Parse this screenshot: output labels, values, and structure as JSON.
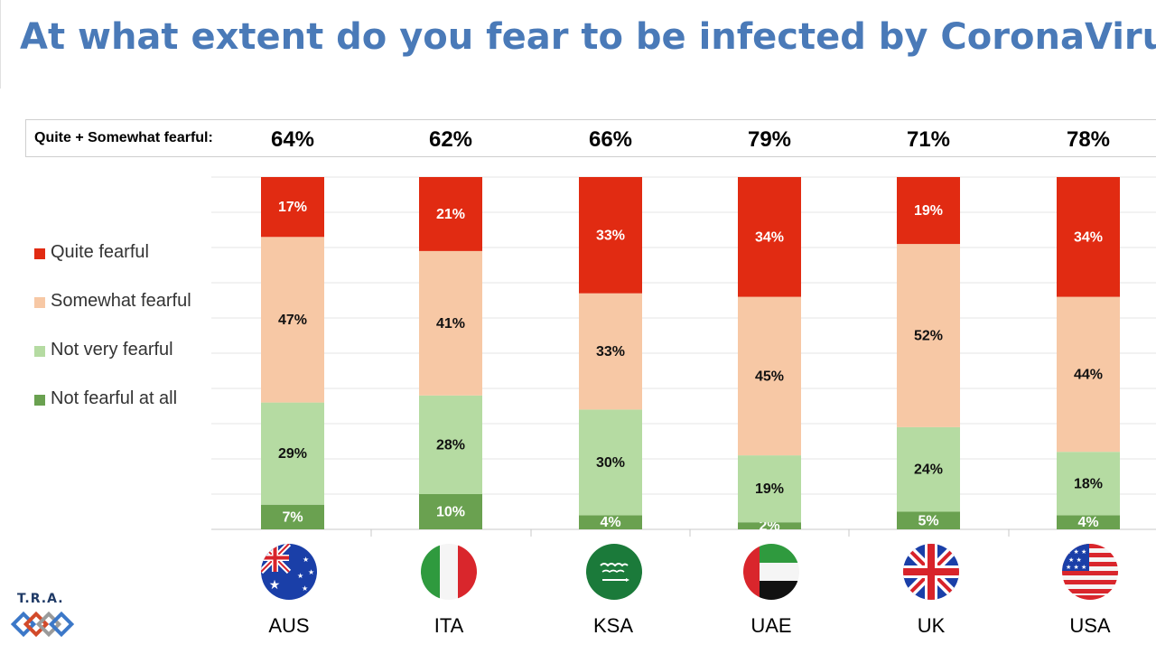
{
  "title": "At what extent do you fear to be infected by CoronaVirus?",
  "summary": {
    "label": "Quite + Somewhat fearful:",
    "values": [
      "64%",
      "62%",
      "66%",
      "79%",
      "71%",
      "78%"
    ]
  },
  "legend": [
    {
      "label": "Quite fearful",
      "color": "#e12b12"
    },
    {
      "label": "Somewhat fearful",
      "color": "#f7c8a5"
    },
    {
      "label": "Not very fearful",
      "color": "#b5dba2"
    },
    {
      "label": "Not fearful at all",
      "color": "#6aa150"
    }
  ],
  "logo": {
    "text": "T.R.A."
  },
  "chart_data": {
    "type": "bar",
    "stacked": true,
    "categories": [
      "AUS",
      "ITA",
      "KSA",
      "UAE",
      "UK",
      "USA"
    ],
    "flags": [
      "australia-flag-icon",
      "italy-flag-icon",
      "saudi-arabia-flag-icon",
      "uae-flag-icon",
      "uk-flag-icon",
      "usa-flag-icon"
    ],
    "series": [
      {
        "name": "Not fearful at all",
        "color": "#6aa150",
        "values": [
          7,
          10,
          4,
          2,
          5,
          4
        ],
        "labels": [
          "7%",
          "10%",
          "4%",
          "2%",
          "5%",
          "4%"
        ]
      },
      {
        "name": "Not very fearful",
        "color": "#b5dba2",
        "values": [
          29,
          28,
          30,
          19,
          24,
          18
        ],
        "labels": [
          "29%",
          "28%",
          "30%",
          "19%",
          "24%",
          "18%"
        ]
      },
      {
        "name": "Somewhat fearful",
        "color": "#f7c8a5",
        "values": [
          47,
          41,
          33,
          45,
          52,
          44
        ],
        "labels": [
          "47%",
          "41%",
          "33%",
          "45%",
          "52%",
          "44%"
        ]
      },
      {
        "name": "Quite fearful",
        "color": "#e12b12",
        "values": [
          17,
          21,
          33,
          34,
          19,
          34
        ],
        "labels": [
          "17%",
          "21%",
          "33%",
          "34%",
          "19%",
          "34%"
        ]
      }
    ],
    "ylim": [
      0,
      100
    ],
    "grid": true
  }
}
